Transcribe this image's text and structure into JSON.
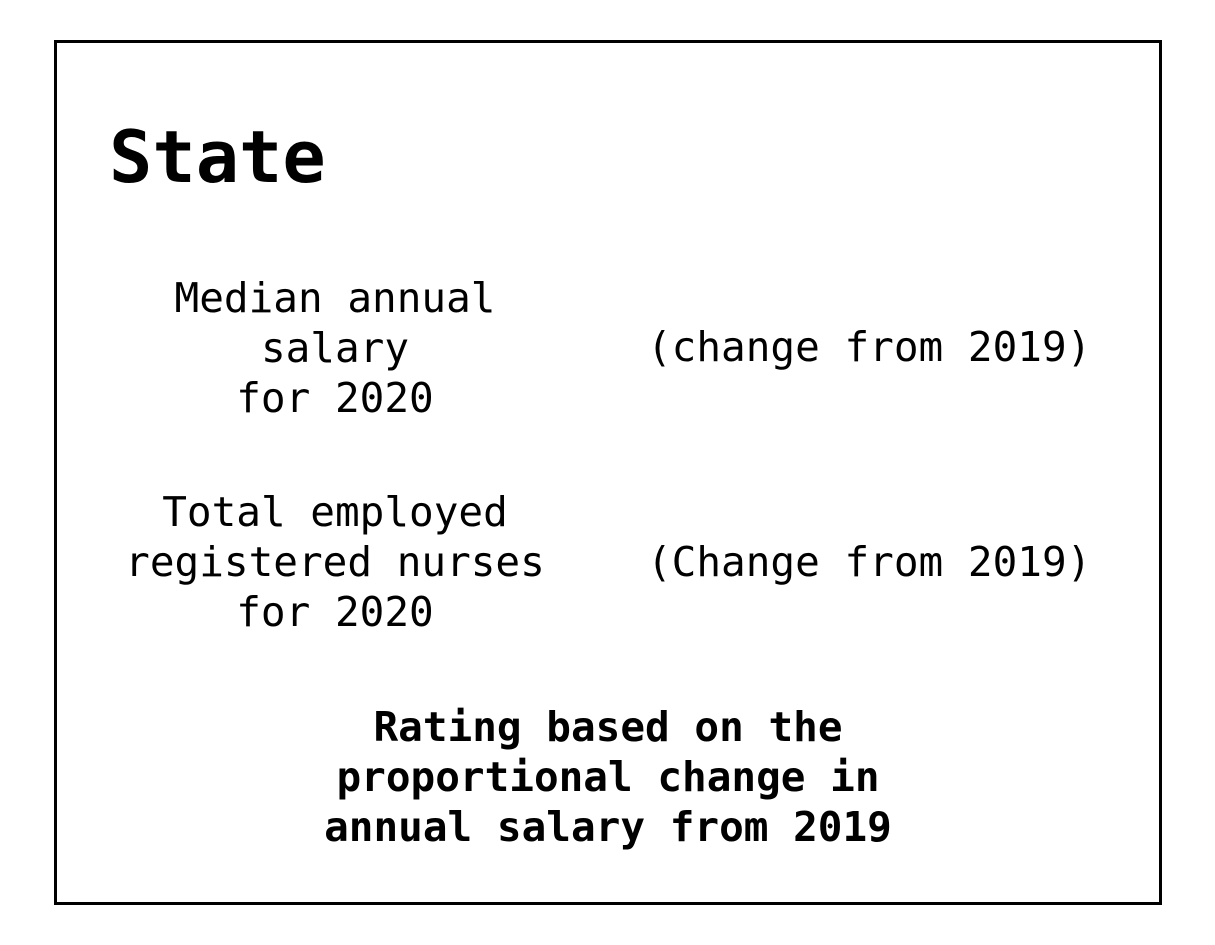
{
  "title": "State",
  "salary": {
    "label": "Median annual\nsalary\nfor 2020",
    "change": "(change from 2019)"
  },
  "nurses": {
    "label": "Total employed\nregistered nurses\nfor 2020",
    "change": "(Change from 2019)"
  },
  "rating_note": "Rating based on the\nproportional change in\nannual salary from 2019",
  "colors": {
    "border": "#000000",
    "background": "#ffffff",
    "text": "#000000"
  }
}
